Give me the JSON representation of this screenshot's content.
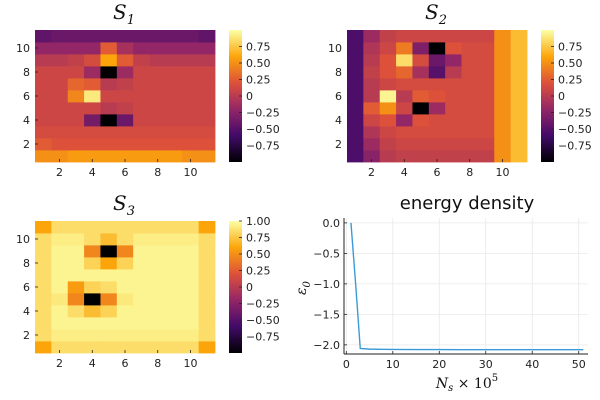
{
  "colorscale": [
    "#000004",
    "#420a68",
    "#932667",
    "#dd513a",
    "#fca50a",
    "#fcffa4"
  ],
  "line_color": "#3a9ad8",
  "chart_data": [
    {
      "type": "heatmap",
      "title_main": "S",
      "title_sub": "1",
      "xticks": [
        "2",
        "4",
        "6",
        "8",
        "10"
      ],
      "yticks": [
        "2",
        "4",
        "6",
        "8",
        "10"
      ],
      "xrange": [
        1,
        11
      ],
      "yrange": [
        1,
        11
      ],
      "clim": [
        -1,
        1
      ],
      "colorbar_ticks": [
        "0.75",
        "0.50",
        "0.25",
        "0",
        "−0.25",
        "−0.50",
        "−0.75"
      ],
      "colorbar_values": [
        0.75,
        0.5,
        0.25,
        0,
        -0.25,
        -0.5,
        -0.75
      ],
      "values": [
        [
          0.5,
          0.5,
          0.55,
          0.55,
          0.55,
          0.55,
          0.55,
          0.55,
          0.55,
          0.5,
          0.5
        ],
        [
          0.25,
          0.2,
          0.2,
          0.2,
          0.2,
          0.2,
          0.2,
          0.2,
          0.2,
          0.2,
          0.2
        ],
        [
          0.15,
          0.15,
          0.15,
          0.15,
          0.15,
          0.15,
          0.15,
          0.15,
          0.15,
          0.15,
          0.15
        ],
        [
          0.1,
          0.1,
          0.1,
          -0.35,
          -1.0,
          -0.4,
          0.1,
          0.1,
          0.1,
          0.1,
          0.1
        ],
        [
          0.1,
          0.1,
          0.1,
          0.1,
          0.0,
          0.05,
          0.1,
          0.1,
          0.1,
          0.1,
          0.1
        ],
        [
          0.1,
          0.1,
          0.45,
          0.9,
          0.1,
          0.1,
          0.1,
          0.1,
          0.1,
          0.1,
          0.1
        ],
        [
          0.1,
          0.1,
          0.3,
          0.25,
          0.0,
          0.05,
          0.1,
          0.1,
          0.1,
          0.1,
          0.1
        ],
        [
          0.1,
          0.1,
          0.1,
          -0.15,
          -1.0,
          -0.15,
          0.1,
          0.1,
          0.1,
          0.1,
          0.1
        ],
        [
          0.0,
          0.0,
          0.05,
          0.15,
          0.6,
          0.25,
          0.05,
          0.0,
          0.0,
          0.0,
          0.0
        ],
        [
          -0.2,
          -0.2,
          -0.2,
          -0.2,
          0.25,
          -0.1,
          -0.2,
          -0.2,
          -0.2,
          -0.2,
          -0.2
        ],
        [
          -0.45,
          -0.4,
          -0.4,
          -0.4,
          -0.4,
          -0.4,
          -0.4,
          -0.4,
          -0.4,
          -0.4,
          -0.45
        ]
      ]
    },
    {
      "type": "heatmap",
      "title_main": "S",
      "title_sub": "2",
      "xticks": [
        "2",
        "4",
        "6",
        "8",
        "10"
      ],
      "yticks": [
        "2",
        "4",
        "6",
        "8",
        "10"
      ],
      "xrange": [
        1,
        11
      ],
      "yrange": [
        1,
        11
      ],
      "clim": [
        -1,
        1
      ],
      "colorbar_ticks": [
        "0.75",
        "0.50",
        "0.25",
        "0",
        "−0.25",
        "−0.50",
        "−0.75"
      ],
      "colorbar_values": [
        0.75,
        0.5,
        0.25,
        0,
        -0.25,
        -0.5,
        -0.75
      ],
      "values": [
        [
          -0.55,
          -0.25,
          0.0,
          0.05,
          0.05,
          0.05,
          0.05,
          0.05,
          0.05,
          0.5,
          0.7
        ],
        [
          -0.55,
          -0.15,
          0.05,
          0.1,
          0.1,
          0.1,
          0.1,
          0.1,
          0.1,
          0.5,
          0.7
        ],
        [
          -0.55,
          -0.05,
          0.1,
          0.15,
          0.15,
          0.15,
          0.15,
          0.15,
          0.15,
          0.5,
          0.7
        ],
        [
          -0.55,
          0.1,
          0.2,
          -0.2,
          0.2,
          0.15,
          0.15,
          0.15,
          0.15,
          0.5,
          0.7
        ],
        [
          -0.55,
          0.25,
          0.5,
          0.1,
          -1.0,
          -0.15,
          0.15,
          0.15,
          0.15,
          0.5,
          0.7
        ],
        [
          -0.55,
          0.0,
          0.95,
          0.0,
          0.25,
          0.2,
          0.15,
          0.15,
          0.15,
          0.5,
          0.7
        ],
        [
          -0.55,
          0.0,
          0.1,
          0.15,
          0.15,
          0.15,
          0.15,
          0.15,
          0.15,
          0.5,
          0.7
        ],
        [
          -0.55,
          0.05,
          0.2,
          0.3,
          -0.1,
          -0.5,
          0.0,
          0.15,
          0.15,
          0.5,
          0.7
        ],
        [
          -0.55,
          0.0,
          0.2,
          0.85,
          0.15,
          -0.4,
          -0.2,
          0.15,
          0.15,
          0.5,
          0.7
        ],
        [
          -0.55,
          -0.05,
          0.1,
          0.4,
          -0.3,
          -1.0,
          0.2,
          0.15,
          0.15,
          0.5,
          0.7
        ],
        [
          -0.55,
          -0.15,
          0.05,
          0.1,
          0.1,
          0.1,
          0.1,
          0.1,
          0.1,
          0.5,
          0.7
        ]
      ]
    },
    {
      "type": "heatmap",
      "title_main": "S",
      "title_sub": "3",
      "xticks": [
        "2",
        "4",
        "6",
        "8",
        "10"
      ],
      "yticks": [
        "2",
        "4",
        "6",
        "8",
        "10"
      ],
      "xrange": [
        1,
        11
      ],
      "yrange": [
        1,
        11
      ],
      "clim": [
        -1,
        1
      ],
      "colorbar_ticks": [
        "1.00",
        "0.75",
        "0.50",
        "0.25",
        "0",
        "−0.25",
        "−0.50",
        "−0.75"
      ],
      "colorbar_values": [
        1.0,
        0.75,
        0.5,
        0.25,
        0,
        -0.25,
        -0.5,
        -0.75
      ],
      "values": [
        [
          0.6,
          0.85,
          0.85,
          0.85,
          0.85,
          0.85,
          0.85,
          0.85,
          0.85,
          0.85,
          0.6
        ],
        [
          0.85,
          0.92,
          0.92,
          0.92,
          0.92,
          0.92,
          0.92,
          0.92,
          0.92,
          0.92,
          0.85
        ],
        [
          0.85,
          0.95,
          0.95,
          0.95,
          0.95,
          0.95,
          0.95,
          0.95,
          0.95,
          0.95,
          0.85
        ],
        [
          0.85,
          0.95,
          0.85,
          0.7,
          0.8,
          0.95,
          0.95,
          0.95,
          0.95,
          0.95,
          0.85
        ],
        [
          0.85,
          0.9,
          0.45,
          -1.0,
          0.45,
          0.9,
          0.95,
          0.95,
          0.95,
          0.95,
          0.85
        ],
        [
          0.85,
          0.95,
          0.55,
          0.8,
          0.85,
          0.95,
          0.95,
          0.95,
          0.95,
          0.95,
          0.85
        ],
        [
          0.85,
          0.95,
          0.95,
          0.95,
          0.95,
          0.95,
          0.95,
          0.95,
          0.95,
          0.95,
          0.85
        ],
        [
          0.85,
          0.95,
          0.95,
          0.8,
          0.6,
          0.8,
          0.95,
          0.95,
          0.95,
          0.95,
          0.85
        ],
        [
          0.85,
          0.95,
          0.95,
          0.45,
          -1.0,
          0.45,
          0.95,
          0.95,
          0.95,
          0.95,
          0.85
        ],
        [
          0.85,
          0.92,
          0.92,
          0.85,
          0.7,
          0.85,
          0.92,
          0.92,
          0.92,
          0.92,
          0.85
        ],
        [
          0.6,
          0.85,
          0.85,
          0.85,
          0.85,
          0.85,
          0.85,
          0.85,
          0.85,
          0.85,
          0.6
        ]
      ]
    },
    {
      "type": "line",
      "title": "energy density",
      "ylabel_main": "ε",
      "ylabel_sub": "0",
      "xlabel_main": "N",
      "xlabel_sub": "s",
      "xlabel_suffix": " × 10",
      "xlabel_exp": "5",
      "xticks": [
        "0",
        "10",
        "20",
        "30",
        "40",
        "50"
      ],
      "xtick_values": [
        0,
        10,
        20,
        30,
        40,
        50
      ],
      "yticks": [
        "0.0",
        "−0.5",
        "−1.0",
        "−1.5",
        "−2.0"
      ],
      "ytick_values": [
        0.0,
        -0.5,
        -1.0,
        -1.5,
        -2.0
      ],
      "xlim": [
        -0.5,
        52
      ],
      "ylim": [
        -2.15,
        0.08
      ],
      "grid": true,
      "series": [
        {
          "x": [
            1,
            2,
            3,
            5,
            10,
            15,
            20,
            25,
            30,
            35,
            40,
            45,
            50,
            51
          ],
          "y": [
            0.0,
            -1.0,
            -2.06,
            -2.07,
            -2.075,
            -2.077,
            -2.078,
            -2.079,
            -2.079,
            -2.08,
            -2.08,
            -2.08,
            -2.08,
            -2.08
          ]
        }
      ]
    }
  ]
}
